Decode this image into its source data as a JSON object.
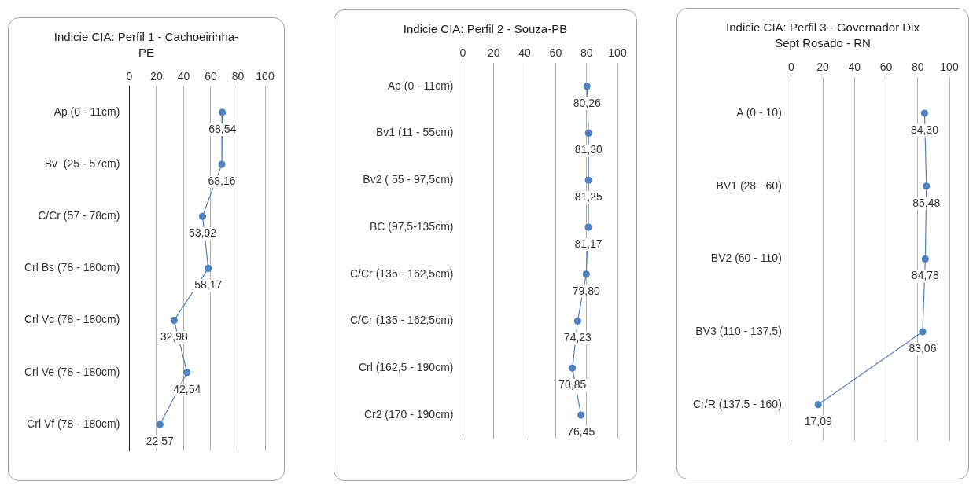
{
  "chart_data": [
    {
      "type": "line",
      "orientation": "horizontal",
      "title": "Indicie CIA:  Perfil 1 - Cachoeirinha-PE",
      "categories": [
        "Ap (0 - 11cm)",
        "Bv  (25 - 57cm)",
        "C/Cr (57 - 78cm)",
        "Crl Bs (78 - 180cm)",
        "Crl Vc (78 - 180cm)",
        "Crl Ve (78 - 180cm)",
        "Crl Vf (78 - 180cm)"
      ],
      "series": [
        {
          "color": "#4f81bd",
          "values": [
            68.54,
            68.16,
            53.92,
            58.17,
            32.98,
            42.54,
            22.57
          ],
          "value_labels": [
            "68,54",
            "68,16",
            "53,92",
            "58,17",
            "32,98",
            "42,54",
            "22,57"
          ]
        }
      ],
      "xlim": [
        0,
        100
      ],
      "xticks": [
        0,
        20,
        40,
        60,
        80,
        100
      ],
      "grid": "x",
      "marker": "circle"
    },
    {
      "type": "line",
      "orientation": "horizontal",
      "title": "Indicie CIA:  Perfil 2 - Souza-PB",
      "categories": [
        "Ap (0 - 11cm)",
        "Bv1 (11 - 55cm)",
        "Bv2 ( 55 - 97,5cm)",
        "BC (97,5-135cm)",
        "C/Cr (135 - 162,5cm)",
        "C/Cr (135 - 162,5cm)",
        "Crl (162,5 - 190cm)",
        "Cr2 (170 - 190cm)"
      ],
      "series": [
        {
          "color": "#4f81bd",
          "values": [
            80.26,
            81.3,
            81.25,
            81.17,
            79.8,
            74.23,
            70.85,
            76.45
          ],
          "value_labels": [
            "80,26",
            "81,30",
            "81,25",
            "81,17",
            "79,80",
            "74,23",
            "70,85",
            "76,45"
          ]
        }
      ],
      "xlim": [
        0,
        100
      ],
      "xticks": [
        0,
        20,
        40,
        60,
        80,
        100
      ],
      "grid": "x",
      "marker": "circle"
    },
    {
      "type": "line",
      "orientation": "horizontal",
      "title": "Indicie CIA:  Perfil 3 - Governador Dix Sept Rosado - RN",
      "categories": [
        "A (0 - 10)",
        "BV1 (28 - 60)",
        "BV2 (60 - 110)",
        "BV3 (110 - 137.5)",
        "Cr/R (137.5 - 160)"
      ],
      "series": [
        {
          "color": "#4f81bd",
          "values": [
            84.3,
            85.48,
            84.78,
            83.06,
            17.09
          ],
          "value_labels": [
            "84,30",
            "85,48",
            "84,78",
            "83,06",
            "17,09"
          ]
        }
      ],
      "xlim": [
        0,
        100
      ],
      "xticks": [
        0,
        20,
        40,
        60,
        80,
        100
      ],
      "grid": "x",
      "marker": "circle"
    }
  ]
}
